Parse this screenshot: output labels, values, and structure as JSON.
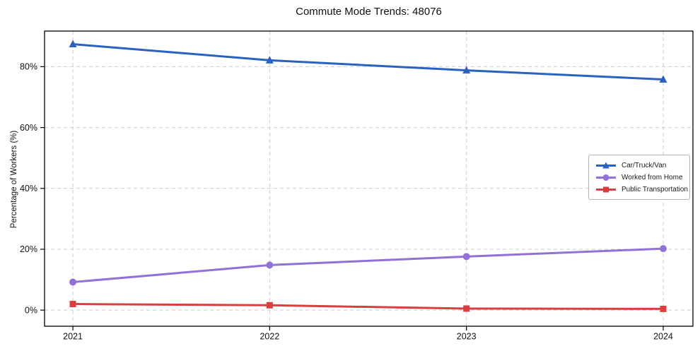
{
  "window": {
    "kind": "static-chart-figure",
    "background_color": "#ffffff"
  },
  "chart_data": {
    "type": "line",
    "title": "Commute Mode Trends: 48076",
    "xlabel": "",
    "ylabel": "Percentage of Workers (%)",
    "x": [
      2021,
      2022,
      2023,
      2024
    ],
    "xtick_labels": [
      "2021",
      "2022",
      "2023",
      "2024"
    ],
    "yticks": [
      0,
      20,
      40,
      60,
      80
    ],
    "ytick_labels": [
      "0%",
      "20%",
      "40%",
      "60%",
      "80%"
    ],
    "xlim": [
      2020.856,
      2024.151
    ],
    "ylim": [
      -5.3,
      91.7
    ],
    "grid": true,
    "grid_style": "dashed",
    "grid_color": "#cccccc",
    "spine_color": "#000000",
    "legend_position": "center-right",
    "legend_border_color": "#b5b5b5",
    "series": [
      {
        "name": "Car/Truck/Van",
        "values": [
          87.4,
          82.1,
          78.8,
          75.8
        ],
        "color": "#2a62c2",
        "marker": "triangle",
        "line_width": 3
      },
      {
        "name": "Worked from Home",
        "values": [
          9.2,
          14.8,
          17.6,
          20.2
        ],
        "color": "#9370d8",
        "marker": "circle",
        "line_width": 3
      },
      {
        "name": "Public Transportation",
        "values": [
          2.0,
          1.6,
          0.5,
          0.4
        ],
        "color": "#db3e3e",
        "marker": "square",
        "line_width": 3
      }
    ]
  }
}
